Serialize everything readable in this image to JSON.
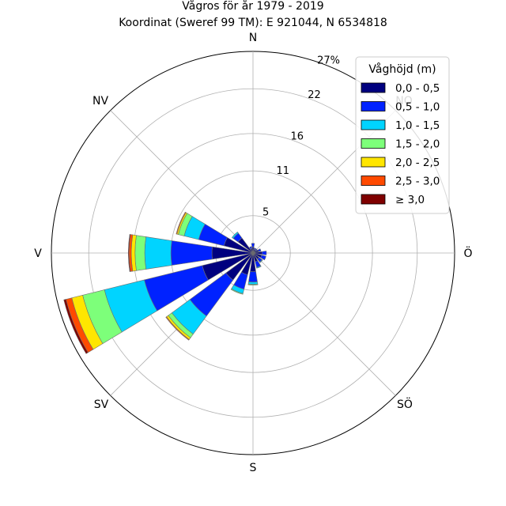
{
  "title": {
    "line1": "Vågros för år 1979 - 2019",
    "line2": "Koordinat (Sweref 99 TM): E 921044, N 6534818"
  },
  "chart_data": {
    "type": "polar-bar",
    "r_max": 27,
    "r_ticks": [
      5,
      11,
      16,
      22,
      27
    ],
    "r_tick_labels": [
      "5",
      "11",
      "16",
      "22",
      "27%"
    ],
    "direction_labels": {
      "N": "N",
      "NO": "NO",
      "O": "Ö",
      "SO": "SÖ",
      "S": "S",
      "SV": "SV",
      "V": "V",
      "NV": "NV"
    },
    "legend": {
      "title": "Våghöjd (m)",
      "placement": "top-right",
      "bins": [
        "0,0 - 0,5",
        "0,5 - 1,0",
        "1,0 - 1,5",
        "1,5 - 2,0",
        "2,0 - 2,5",
        "2,5 - 3,0",
        "≥ 3,0"
      ],
      "colors": [
        "#00007f",
        "#0022ff",
        "#00d4ff",
        "#7dff7a",
        "#ffe600",
        "#ff4a00",
        "#7f0000"
      ]
    },
    "sectors": [
      {
        "dir": 0,
        "values": [
          0.8,
          0.5,
          0,
          0,
          0,
          0,
          0
        ]
      },
      {
        "dir": 22.5,
        "values": [
          0.5,
          0.2,
          0,
          0,
          0,
          0,
          0
        ]
      },
      {
        "dir": 45,
        "values": [
          0.5,
          0.2,
          0,
          0,
          0,
          0,
          0
        ]
      },
      {
        "dir": 67.5,
        "values": [
          0.8,
          0.3,
          0,
          0,
          0,
          0,
          0
        ]
      },
      {
        "dir": 90,
        "values": [
          1.2,
          0.6,
          0,
          0,
          0,
          0,
          0
        ]
      },
      {
        "dir": 112.5,
        "values": [
          1.2,
          0.6,
          0,
          0,
          0,
          0,
          0
        ]
      },
      {
        "dir": 135,
        "values": [
          1.0,
          0.5,
          0.1,
          0,
          0,
          0,
          0
        ]
      },
      {
        "dir": 157.5,
        "values": [
          1.2,
          0.8,
          0.1,
          0,
          0,
          0,
          0
        ]
      },
      {
        "dir": 180,
        "values": [
          2.5,
          1.4,
          0.3,
          0.1,
          0,
          0,
          0
        ]
      },
      {
        "dir": 202.5,
        "values": [
          3.0,
          2.0,
          0.6,
          0.1,
          0,
          0,
          0
        ]
      },
      {
        "dir": 225,
        "values": [
          4.5,
          6.0,
          3.0,
          0.6,
          0.3,
          0.1,
          0
        ]
      },
      {
        "dir": 247.5,
        "values": [
          7.0,
          8.0,
          5.5,
          3.0,
          1.5,
          0.8,
          0.3
        ]
      },
      {
        "dir": 270,
        "values": [
          5.5,
          5.5,
          3.5,
          1.3,
          0.5,
          0.3,
          0.1
        ]
      },
      {
        "dir": 292.5,
        "values": [
          4.0,
          3.5,
          2.0,
          0.8,
          0.2,
          0.1,
          0
        ]
      },
      {
        "dir": 315,
        "values": [
          2.5,
          0.8,
          0.2,
          0,
          0,
          0,
          0
        ]
      },
      {
        "dir": 337.5,
        "values": [
          0.6,
          0.3,
          0,
          0,
          0,
          0,
          0
        ]
      }
    ]
  }
}
